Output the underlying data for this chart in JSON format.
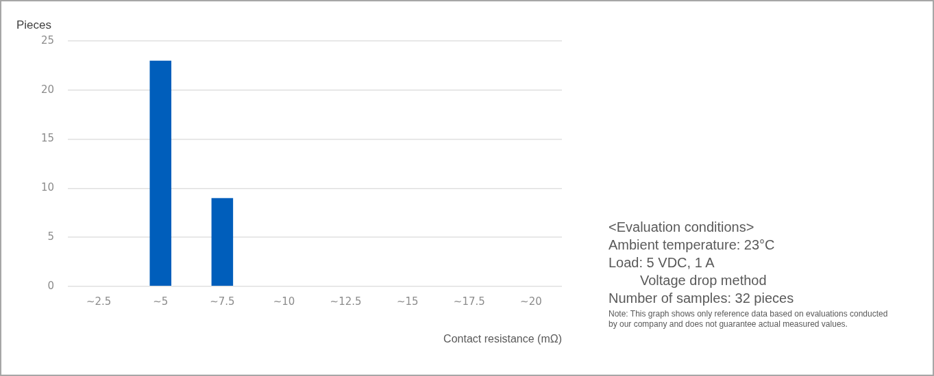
{
  "chart_data": {
    "type": "bar",
    "categories": [
      "~2.5",
      "~5",
      "~7.5",
      "~10",
      "~12.5",
      "~15",
      "~17.5",
      "~20"
    ],
    "values": [
      0,
      23,
      9,
      0,
      0,
      0,
      0,
      0
    ],
    "color": "#005ebb",
    "ylim": [
      0,
      25
    ],
    "yticks": [
      0,
      5,
      10,
      15,
      20,
      25
    ],
    "grid": "y",
    "xlabel": "Contact resistance (mΩ)",
    "ylabel": "Pieces",
    "annotations": [
      "<Evaluation conditions>",
      "Ambient temperature: 23°C",
      "Load: 5 VDC, 1 A",
      "Voltage drop method",
      "Number of samples: 32 pieces",
      "Note: This graph shows only reference data based on evaluations conducted by our company and does not guarantee actual measured values."
    ]
  }
}
